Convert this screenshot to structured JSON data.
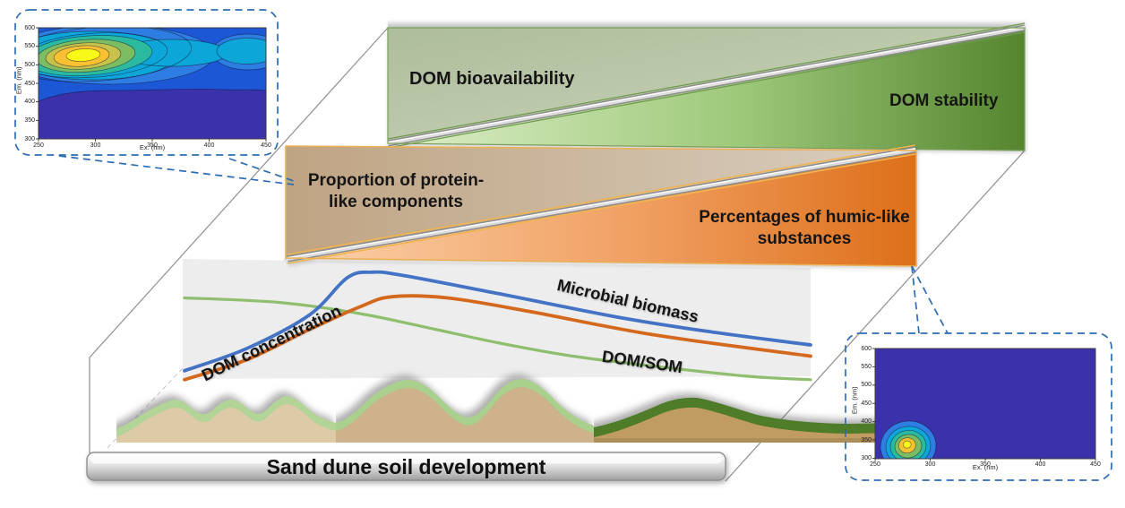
{
  "title_bar": {
    "label": "Sand dune soil development"
  },
  "wedges": {
    "green": {
      "left_label": "DOM bioavailability",
      "right_label": "DOM stability",
      "upper_color": "#b7c5a6",
      "lower_gradient": [
        "#ddeec9",
        "#9ec97a",
        "#55852f"
      ]
    },
    "orange": {
      "left_label": "Proportion of protein-like components",
      "right_label": "Percentages of humic-like substances",
      "upper_gradient": [
        "#bfa483",
        "#d9cfc0"
      ],
      "lower_gradient": [
        "#fbd2ab",
        "#f0a063",
        "#dd6f19"
      ]
    }
  },
  "callouts": {
    "dash_color": "#2d6cb5"
  },
  "chart_data": [
    {
      "id": "eem_contour_late_stage_top_left",
      "type": "heatmap",
      "xlabel": "Ex. (nm)",
      "ylabel": "Em. (nm)",
      "xlim": [
        250,
        450
      ],
      "ylim": [
        300,
        600
      ],
      "xticks": [
        250,
        300,
        350,
        400,
        450
      ],
      "yticks": [
        300,
        350,
        400,
        450,
        500,
        550,
        600
      ],
      "peaks": [
        {
          "ex": 300,
          "em": 520,
          "relative_intensity": 1.0
        },
        {
          "ex": 445,
          "em": 520,
          "relative_intensity": 0.45
        }
      ],
      "colormap": "parula",
      "legend_position": "none",
      "grid": false
    },
    {
      "id": "eem_contour_early_stage_bottom_right",
      "type": "heatmap",
      "xlabel": "Ex. (nm)",
      "ylabel": "Em. (nm)",
      "xlim": [
        250,
        450
      ],
      "ylim": [
        300,
        600
      ],
      "xticks": [
        250,
        300,
        350,
        400,
        450
      ],
      "yticks": [
        300,
        350,
        400,
        450,
        500,
        550,
        600
      ],
      "peaks": [
        {
          "ex": 280,
          "em": 325,
          "relative_intensity": 1.0
        }
      ],
      "colormap": "parula",
      "legend_position": "none",
      "grid": false
    },
    {
      "id": "soil_development_trends",
      "type": "line",
      "x": "sand dune soil development stage (relative 0-1)",
      "ylim": [
        0,
        1
      ],
      "grid": false,
      "legend_position": "inline-labels",
      "series": [
        {
          "name": "Microbial biomass",
          "color": "#4472c4",
          "points": [
            [
              0,
              0.05
            ],
            [
              0.1,
              0.25
            ],
            [
              0.2,
              0.55
            ],
            [
              0.26,
              0.88
            ],
            [
              0.3,
              0.93
            ],
            [
              0.35,
              0.9
            ],
            [
              0.5,
              0.74
            ],
            [
              0.7,
              0.52
            ],
            [
              0.85,
              0.39
            ],
            [
              1,
              0.28
            ]
          ]
        },
        {
          "name": "DOM concentration",
          "color": "#d4691e",
          "points": [
            [
              0,
              -0.03
            ],
            [
              0.1,
              0.15
            ],
            [
              0.2,
              0.42
            ],
            [
              0.28,
              0.62
            ],
            [
              0.33,
              0.71
            ],
            [
              0.42,
              0.7
            ],
            [
              0.55,
              0.58
            ],
            [
              0.75,
              0.37
            ],
            [
              1,
              0.18
            ]
          ]
        },
        {
          "name": "DOM/SOM",
          "color": "#8fbe6e",
          "points": [
            [
              0,
              0.7
            ],
            [
              0.15,
              0.66
            ],
            [
              0.28,
              0.56
            ],
            [
              0.4,
              0.42
            ],
            [
              0.5,
              0.3
            ],
            [
              0.62,
              0.18
            ],
            [
              0.75,
              0.09
            ],
            [
              0.9,
              0.0
            ],
            [
              1,
              -0.03
            ]
          ]
        }
      ]
    }
  ]
}
